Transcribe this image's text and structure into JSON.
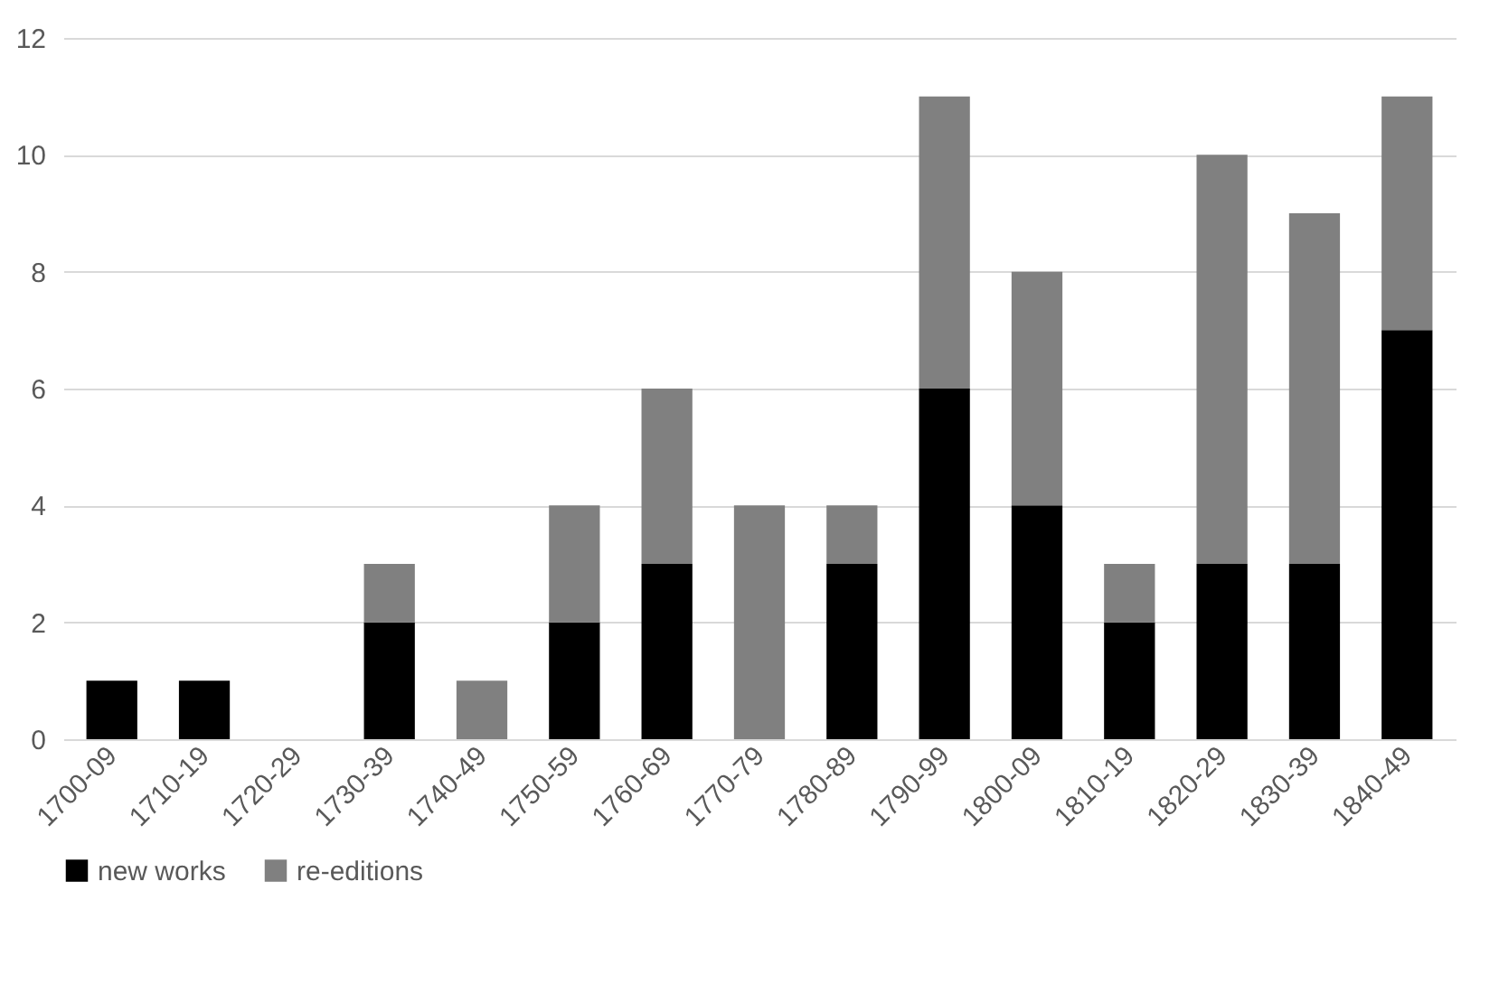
{
  "chart_data": {
    "type": "bar",
    "stacked": true,
    "categories": [
      "1700-09",
      "1710-19",
      "1720-29",
      "1730-39",
      "1740-49",
      "1750-59",
      "1760-69",
      "1770-79",
      "1780-89",
      "1790-99",
      "1800-09",
      "1810-19",
      "1820-29",
      "1830-39",
      "1840-49"
    ],
    "series": [
      {
        "name": "new works",
        "color": "#000000",
        "values": [
          1,
          1,
          0,
          2,
          0,
          2,
          3,
          0,
          3,
          6,
          4,
          2,
          3,
          3,
          7
        ]
      },
      {
        "name": "re-editions",
        "color": "#808080",
        "values": [
          0,
          0,
          0,
          1,
          1,
          2,
          3,
          4,
          1,
          5,
          4,
          1,
          7,
          6,
          4
        ]
      }
    ],
    "ylim": [
      0,
      12
    ],
    "yticks": [
      0,
      2,
      4,
      6,
      8,
      10,
      12
    ],
    "grid": "y",
    "legend": "bottom"
  }
}
